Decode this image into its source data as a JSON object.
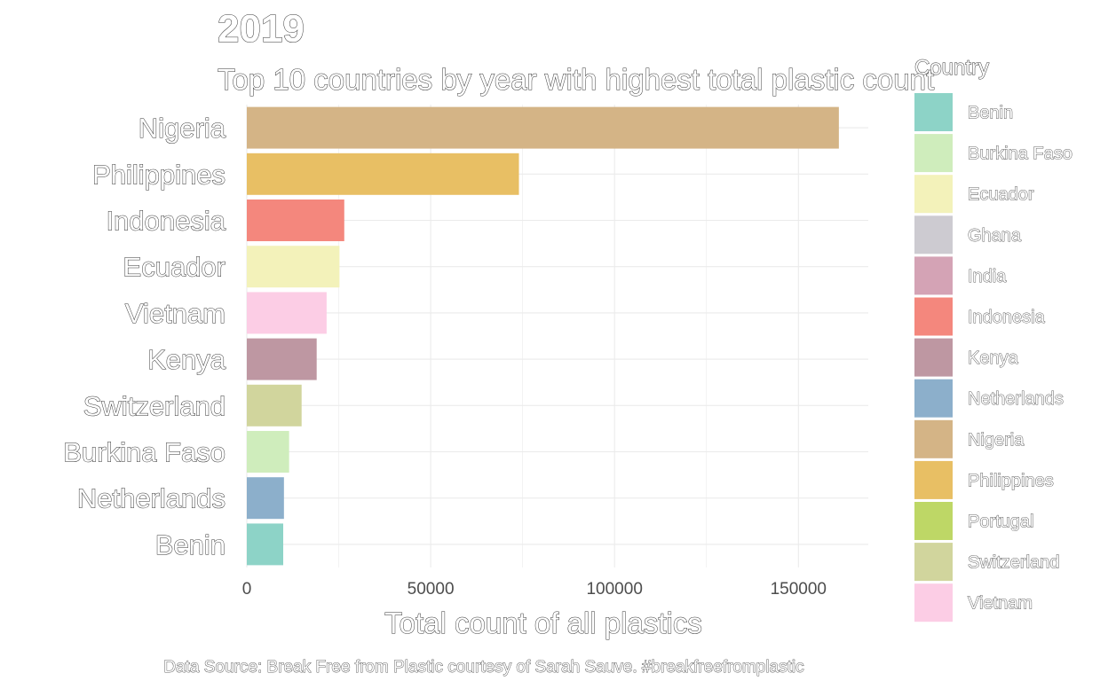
{
  "chart_data": {
    "type": "bar",
    "orientation": "horizontal",
    "title": "2019",
    "subtitle": "Top 10 countries by year with highest total plastic count",
    "xlabel": "Total count of all plastics",
    "ylabel": "",
    "caption": "Data Source: Break Free from Plastic courtesy of Sarah Sauve. #breakfreefromplastic",
    "xlim": [
      0,
      169000
    ],
    "x_ticks": [
      0,
      50000,
      100000,
      150000
    ],
    "x_tick_labels": [
      "0",
      "50000",
      "100000",
      "150000"
    ],
    "grid": true,
    "legend_position": "right",
    "categories": [
      "Nigeria",
      "Philippines",
      "Indonesia",
      "Ecuador",
      "Vietnam",
      "Kenya",
      "Switzerland",
      "Burkina Faso",
      "Netherlands",
      "Benin"
    ],
    "values": [
      161000,
      74000,
      26500,
      25200,
      21700,
      19000,
      14900,
      11500,
      10100,
      9900
    ],
    "bar_colors": [
      "#D4B486",
      "#E8BF64",
      "#F4877D",
      "#F3F2BA",
      "#FCCDE5",
      "#BE97A2",
      "#D1D59D",
      "#CFEDBC",
      "#8CAFCB",
      "#8DD3C7"
    ],
    "legend": {
      "title": "Country",
      "items": [
        {
          "label": "Benin",
          "color": "#8DD3C7"
        },
        {
          "label": "Burkina Faso",
          "color": "#CFEDBC"
        },
        {
          "label": "Ecuador",
          "color": "#F3F2BA"
        },
        {
          "label": "Ghana",
          "color": "#CDCBD1"
        },
        {
          "label": "India",
          "color": "#D4A3B5"
        },
        {
          "label": "Indonesia",
          "color": "#F4877D"
        },
        {
          "label": "Kenya",
          "color": "#BE97A2"
        },
        {
          "label": "Netherlands",
          "color": "#8CAFCB"
        },
        {
          "label": "Nigeria",
          "color": "#D4B486"
        },
        {
          "label": "Philippines",
          "color": "#E8BF64"
        },
        {
          "label": "Portugal",
          "color": "#BED766"
        },
        {
          "label": "Switzerland",
          "color": "#D1D59D"
        },
        {
          "label": "Vietnam",
          "color": "#FCCDE5"
        }
      ]
    }
  }
}
